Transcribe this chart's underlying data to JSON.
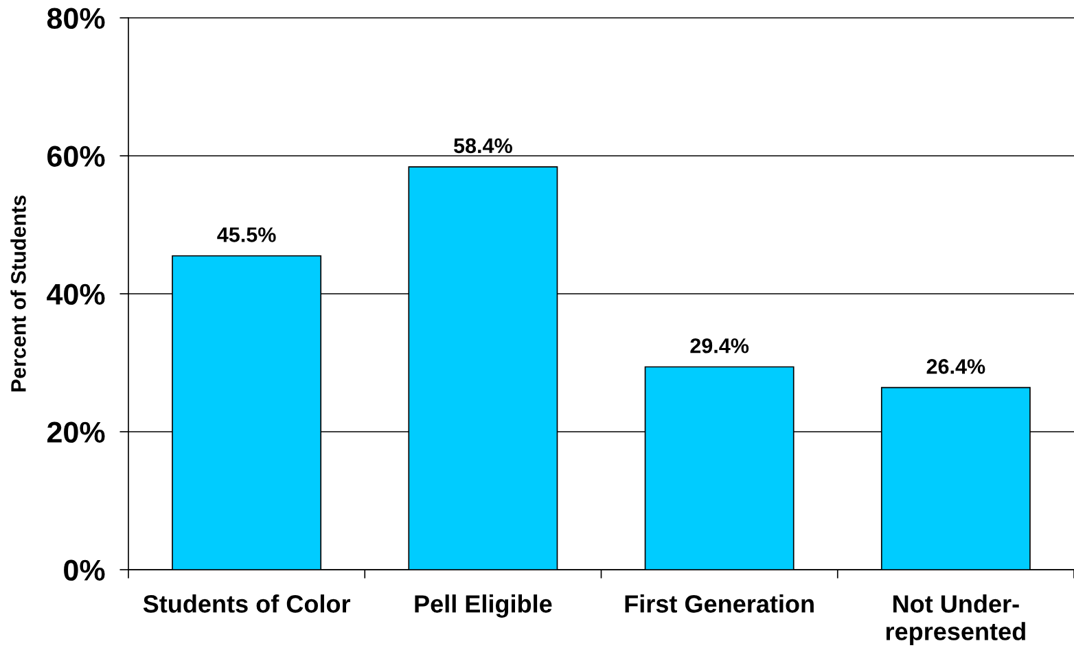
{
  "chart_data": {
    "type": "bar",
    "ylabel": "Percent of Students",
    "categories": [
      "Students of Color",
      "Pell Eligible",
      "First Generation",
      "Not Under-\nrepresented"
    ],
    "values": [
      45.5,
      58.4,
      29.4,
      26.4
    ],
    "color": "#00ccff",
    "value_labels": [
      "45.5%",
      "58.4%",
      "29.4%",
      "26.4%"
    ],
    "ylim": [
      0,
      80
    ],
    "yticks": [
      {
        "value": 0,
        "label": "0%"
      },
      {
        "value": 20,
        "label": "20%"
      },
      {
        "value": 40,
        "label": "40%"
      },
      {
        "value": 60,
        "label": "60%"
      },
      {
        "value": 80,
        "label": "80%"
      }
    ],
    "grid": "y"
  }
}
